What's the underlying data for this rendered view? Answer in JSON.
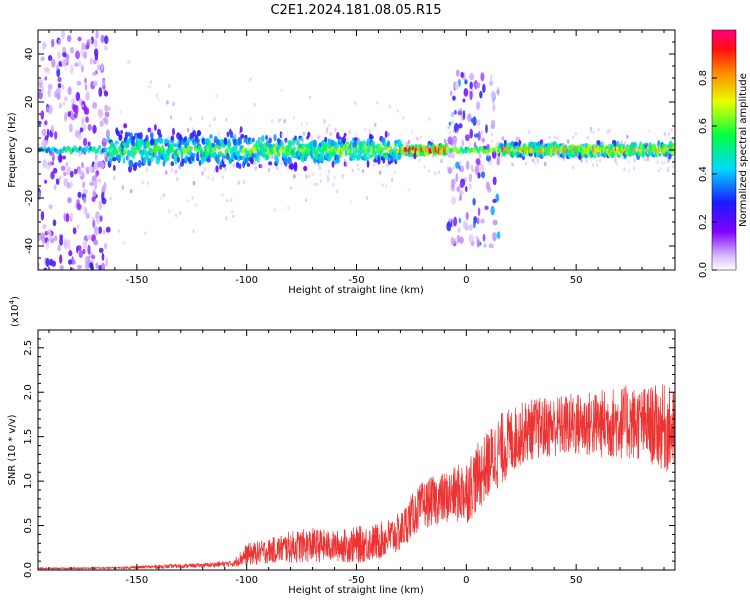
{
  "title": "C2E1.2024.181.08.05.R15",
  "chart_data": [
    {
      "type": "heatmap",
      "name": "spectrogram",
      "xlabel": "Height of straight line (km)",
      "ylabel": "Frequency (Hz)",
      "xlim": [
        -195,
        95
      ],
      "ylim": [
        -50,
        50
      ],
      "x_ticks": [
        -150,
        -100,
        -50,
        0,
        50
      ],
      "x_tick_labels": [
        "-150",
        "-100",
        "-50",
        "0",
        "50"
      ],
      "y_ticks": [
        -40,
        -20,
        0,
        20,
        40
      ],
      "y_tick_labels": [
        "-40",
        "-20",
        "0",
        "20",
        "40"
      ],
      "colorbar": {
        "label": "Normalized spectral amplitude",
        "range": [
          0,
          1
        ],
        "ticks": [
          0.0,
          0.2,
          0.4,
          0.6,
          0.8
        ],
        "tick_labels": [
          "0.0",
          "0.2",
          "0.4",
          "0.6",
          "0.8"
        ],
        "colors": [
          "#ffffff",
          "#c8a0ff",
          "#8000ff",
          "#2020ff",
          "#00e0ff",
          "#00ff40",
          "#f0ff00",
          "#ff8000",
          "#ff0000",
          "#ff0080"
        ]
      },
      "regions": [
        {
          "x_range": [
            -195,
            -163
          ],
          "freq_range": [
            -50,
            50
          ],
          "amplitude": 0.2,
          "note": "broadband noise"
        },
        {
          "x_range": [
            -163,
            -30
          ],
          "freq_center": 0,
          "freq_halfwidth": [
            12,
            7
          ],
          "amplitude": [
            0.4,
            0.5
          ]
        },
        {
          "x_range": [
            -30,
            -8
          ],
          "freq_center": 0,
          "freq_halfwidth": 3,
          "amplitude": 0.75
        },
        {
          "x_range": [
            -8,
            15
          ],
          "freq_range": [
            -40,
            32
          ],
          "amplitude": 0.3,
          "note": "broadband burst"
        },
        {
          "x_range": [
            15,
            95
          ],
          "freq_center": 0,
          "freq_halfwidth": 4,
          "amplitude": 0.6
        }
      ]
    },
    {
      "type": "line",
      "name": "snr",
      "xlabel": "Height of straight line (km)",
      "ylabel": "SNR (10 * v/v)",
      "y_multiplier": "(x10",
      "y_multiplier_exp": "4",
      "y_multiplier_close": ")",
      "xlim": [
        -195,
        95
      ],
      "ylim": [
        0,
        27000
      ],
      "color": "#ee3333",
      "x_ticks": [
        -150,
        -100,
        -50,
        0,
        50
      ],
      "x_tick_labels": [
        "-150",
        "-100",
        "-50",
        "0",
        "50"
      ],
      "y_ticks": [
        0,
        5000,
        10000,
        15000,
        20000,
        25000
      ],
      "y_tick_labels": [
        "0.0",
        "0.5",
        "1.0",
        "1.5",
        "2.0",
        "2.5"
      ],
      "envelope": {
        "x": [
          -195,
          -160,
          -140,
          -120,
          -105,
          -100,
          -90,
          -80,
          -70,
          -60,
          -50,
          -40,
          -30,
          -25,
          -20,
          -15,
          -10,
          -5,
          0,
          5,
          10,
          15,
          20,
          25,
          30,
          40,
          50,
          60,
          70,
          80,
          85,
          90,
          95
        ],
        "mean": [
          100,
          200,
          400,
          600,
          900,
          1600,
          2000,
          2400,
          2600,
          2500,
          2600,
          3000,
          4000,
          5800,
          7000,
          7500,
          7800,
          8200,
          8500,
          10000,
          11500,
          13000,
          14000,
          15000,
          15500,
          15800,
          16000,
          16000,
          16200,
          16000,
          15800,
          15500,
          15000
        ],
        "spread": [
          150,
          200,
          450,
          500,
          800,
          1800,
          2000,
          2600,
          2800,
          2500,
          3000,
          3000,
          3200,
          3500,
          3800,
          4000,
          4200,
          4500,
          5500,
          5500,
          5500,
          6000,
          5500,
          5000,
          5000,
          5000,
          5200,
          5500,
          6000,
          6000,
          6500,
          7000,
          7000
        ]
      }
    }
  ]
}
